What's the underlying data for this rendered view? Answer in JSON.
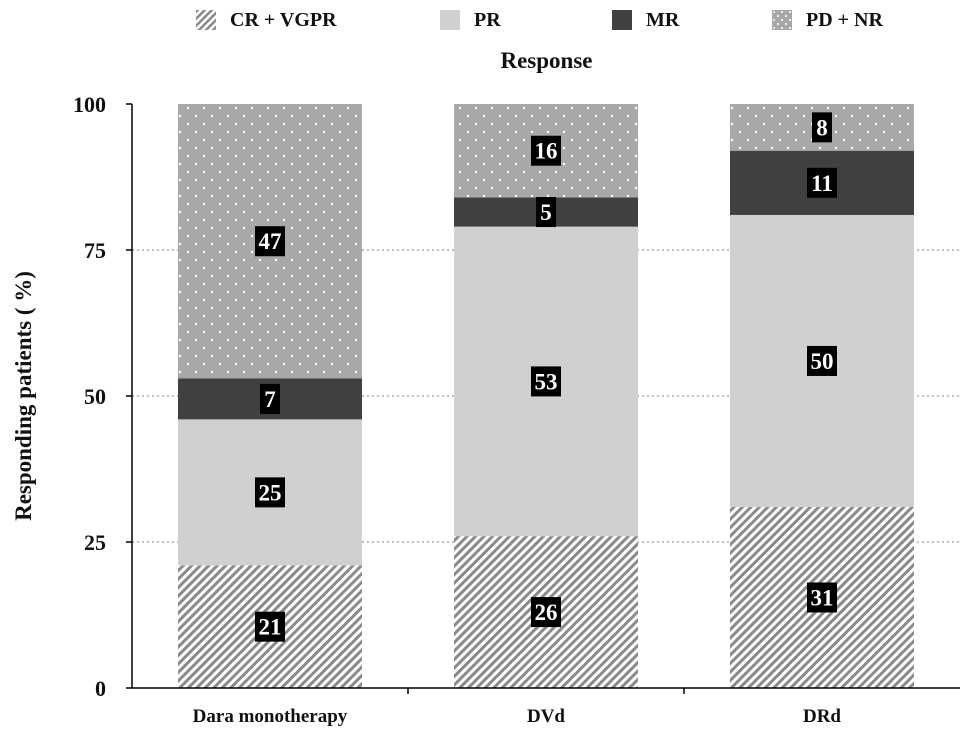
{
  "chart_data": {
    "type": "bar",
    "stacked": true,
    "categories": [
      "Dara monotherapy",
      "DVd",
      "DRd"
    ],
    "series": [
      {
        "name": "CR + VGPR",
        "values": [
          21,
          26,
          31
        ],
        "color": "#9a9a9a",
        "pattern": "diagonal-hatch"
      },
      {
        "name": "PR",
        "values": [
          25,
          53,
          50
        ],
        "color": "#d0d0d0",
        "pattern": "solid"
      },
      {
        "name": "MR",
        "values": [
          7,
          5,
          11
        ],
        "color": "#404040",
        "pattern": "solid"
      },
      {
        "name": "PD + NR",
        "values": [
          47,
          16,
          8
        ],
        "color": "#a8a8a8",
        "pattern": "dots"
      }
    ],
    "legend_title": "Response",
    "legend_position": "top",
    "ylabel": "Responding patients ( %)",
    "xlabel": "",
    "ylim": [
      0,
      100
    ],
    "yticks": [
      "0",
      "25",
      "50",
      "75",
      "100"
    ],
    "grid": "dotted horizontal at 25, 50, 75"
  }
}
